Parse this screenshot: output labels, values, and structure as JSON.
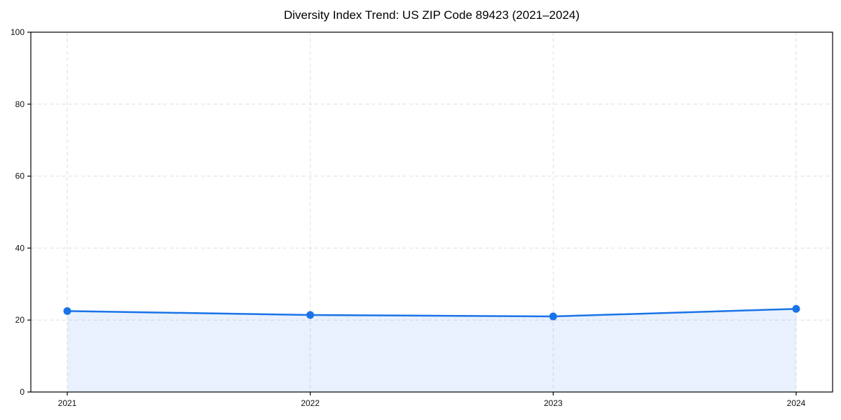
{
  "title": "Diversity Index Trend: US ZIP Code 89423 (2021–2024)",
  "colors": {
    "line": "#1a73e8",
    "marker": "#1a73e8",
    "area_fill": "rgba(26,115,232,0.10)",
    "grid": "#dedede",
    "spine": "#000000",
    "tick_text": "#111111",
    "title_text": "#000000",
    "background": "#ffffff"
  },
  "chart_data": {
    "type": "line",
    "title": "Diversity Index Trend: US ZIP Code 89423 (2021–2024)",
    "x": [
      2021,
      2022,
      2023,
      2024
    ],
    "categories": [
      "2021",
      "2022",
      "2023",
      "2024"
    ],
    "series": [
      {
        "name": "Diversity Index",
        "values": [
          22.5,
          21.4,
          21.0,
          23.1
        ]
      }
    ],
    "xlabel": "",
    "ylabel": "",
    "ylim": [
      0,
      100
    ],
    "yticks": [
      0,
      20,
      40,
      60,
      80,
      100
    ],
    "grid": "dashed",
    "legend_position": "none",
    "marker_style": "circle",
    "area_fill": true
  }
}
